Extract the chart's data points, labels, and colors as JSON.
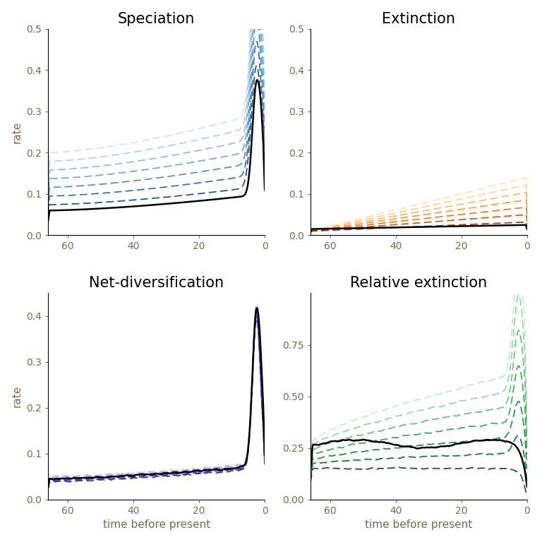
{
  "titles": [
    "Speciation",
    "Extinction",
    "Net-diversification",
    "Relative extinction"
  ],
  "xlabel": "time before present",
  "ylabel": "rate",
  "spec_colors": [
    "#cce0f5",
    "#aacce8",
    "#88b8dc",
    "#66a4d0",
    "#4488c0",
    "#2266a8",
    "#114488",
    "#0a2255"
  ],
  "ext_colors": [
    "#ffe0b0",
    "#ffcc88",
    "#ffb060",
    "#ff9030",
    "#e87010",
    "#c05008",
    "#903005",
    "#601002"
  ],
  "netdiv_colors": [
    "#d5d0f0",
    "#b8b0e8",
    "#9a90e0",
    "#7c70d0",
    "#6050c0",
    "#4838a8",
    "#302090",
    "#1a0a70"
  ],
  "relext_colors": [
    "#c0e8cc",
    "#90d0a0",
    "#60b878",
    "#30a050",
    "#108838",
    "#0a6828",
    "#064818",
    "#022808"
  ],
  "n_dashed": 7,
  "ylims": {
    "speciation": [
      0.0,
      0.5
    ],
    "extinction": [
      0.0,
      0.5
    ],
    "net_div": [
      0.0,
      0.45
    ],
    "rel_ext": [
      0.0,
      1.0
    ]
  },
  "yticks": {
    "speciation": [
      0.0,
      0.1,
      0.2,
      0.3,
      0.4,
      0.5
    ],
    "extinction": [
      0.0,
      0.1,
      0.2,
      0.3,
      0.4,
      0.5
    ],
    "net_div": [
      0.0,
      0.1,
      0.2,
      0.3,
      0.4
    ],
    "rel_ext": [
      0.0,
      0.25,
      0.5,
      0.75
    ]
  },
  "xticks": [
    60,
    40,
    20,
    0
  ],
  "tick_label_color": "#7a6a50",
  "background_color": "#ffffff"
}
